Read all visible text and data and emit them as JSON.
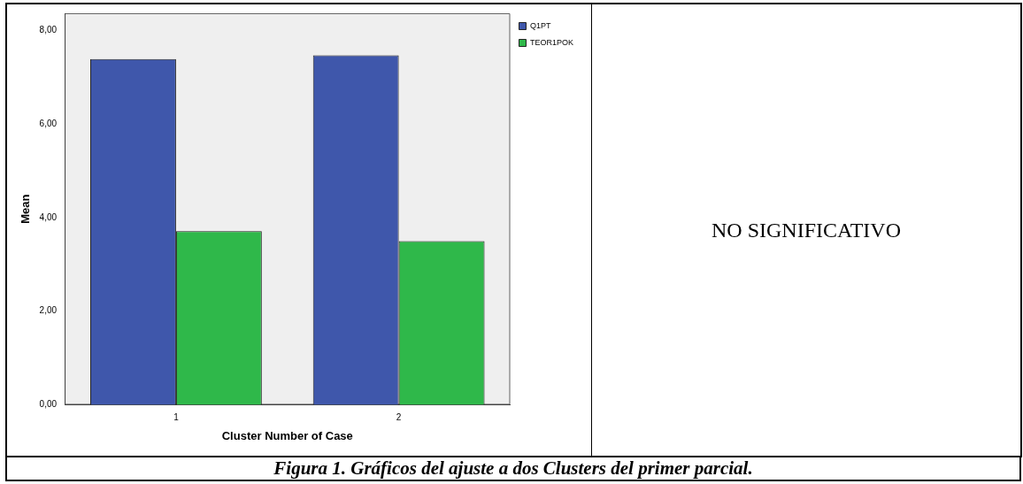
{
  "chart_data": {
    "type": "bar",
    "xlabel": "Cluster Number of Case",
    "ylabel": "Mean",
    "categories": [
      "1",
      "2"
    ],
    "series": [
      {
        "name": "Q1PT",
        "color": "#3f57ab",
        "values": [
          7.39,
          7.47
        ]
      },
      {
        "name": "TEOR1POK",
        "color": "#2fb84a",
        "values": [
          3.71,
          3.5
        ]
      }
    ],
    "ylim": [
      0,
      8.37
    ],
    "yticks": [
      {
        "value": 0,
        "label": "0,00"
      },
      {
        "value": 2,
        "label": "2,00"
      },
      {
        "value": 4,
        "label": "4,00"
      },
      {
        "value": 6,
        "label": "6,00"
      },
      {
        "value": 8,
        "label": "8,00"
      }
    ],
    "grid": false,
    "legend": "top right",
    "annotations": [
      "NO SIGNIFICATIVO",
      "Figura 1. Gráficos del ajuste a dos Clusters del primer parcial."
    ]
  }
}
